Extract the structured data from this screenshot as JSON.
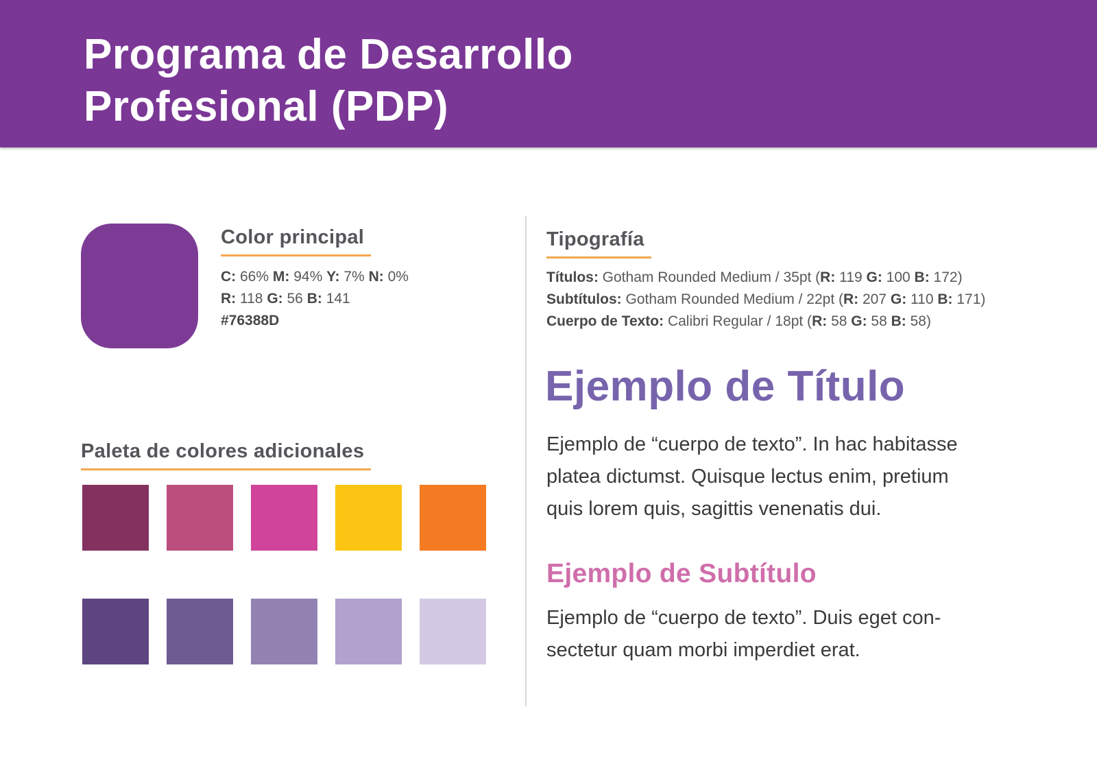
{
  "colors": {
    "header_bg": "#7A3795",
    "accent_underline": "#F2A84C",
    "heading_text": "#55565A",
    "spec_text": "#58585A",
    "divider": "#D6D6D6",
    "body_text": "#3A3A3A"
  },
  "header": {
    "title_lines": [
      "Programa de Desarrollo",
      "Profesional (PDP)"
    ]
  },
  "color_principal": {
    "heading": "Color principal",
    "swatch_color": "#7C3C95",
    "spec_lines": [
      [
        {
          "t": "C:",
          "b": 1
        },
        {
          "t": " 66% ",
          "b": 0
        },
        {
          "t": "M:",
          "b": 1
        },
        {
          "t": " 94% ",
          "b": 0
        },
        {
          "t": "Y:",
          "b": 1
        },
        {
          "t": " 7% ",
          "b": 0
        },
        {
          "t": "N:",
          "b": 1
        },
        {
          "t": " 0%",
          "b": 0
        }
      ],
      [
        {
          "t": "R:",
          "b": 1
        },
        {
          "t": " 118 ",
          "b": 0
        },
        {
          "t": "G:",
          "b": 1
        },
        {
          "t": " 56 ",
          "b": 0
        },
        {
          "t": "B:",
          "b": 1
        },
        {
          "t": " 141",
          "b": 0
        }
      ],
      [
        {
          "t": "#76388D",
          "b": 1
        }
      ]
    ]
  },
  "tipografia": {
    "heading": "Tipografía",
    "spec_lines": [
      [
        {
          "t": "Títulos:",
          "b": 1
        },
        {
          "t": " Gotham Rounded Medium / 35pt (",
          "b": 0
        },
        {
          "t": "R:",
          "b": 1
        },
        {
          "t": " 119 ",
          "b": 0
        },
        {
          "t": "G:",
          "b": 1
        },
        {
          "t": " 100 ",
          "b": 0
        },
        {
          "t": "B:",
          "b": 1
        },
        {
          "t": " 172)",
          "b": 0
        }
      ],
      [
        {
          "t": "Subtítulos:",
          "b": 1
        },
        {
          "t": " Gotham Rounded Medium / 22pt (",
          "b": 0
        },
        {
          "t": "R:",
          "b": 1
        },
        {
          "t": " 207 ",
          "b": 0
        },
        {
          "t": "G:",
          "b": 1
        },
        {
          "t": " 110 ",
          "b": 0
        },
        {
          "t": "B:",
          "b": 1
        },
        {
          "t": " 171)",
          "b": 0
        }
      ],
      [
        {
          "t": "Cuerpo de Texto:",
          "b": 1
        },
        {
          "t": " Calibri Regular / 18pt (",
          "b": 0
        },
        {
          "t": "R:",
          "b": 1
        },
        {
          "t": " 58 ",
          "b": 0
        },
        {
          "t": "G:",
          "b": 1
        },
        {
          "t": " 58 ",
          "b": 0
        },
        {
          "t": "B:",
          "b": 1
        },
        {
          "t": " 58)",
          "b": 0
        }
      ]
    ]
  },
  "palette": {
    "heading": "Paleta de colores adicionales",
    "row1": [
      "#83325F",
      "#BC4E7E",
      "#D0459A",
      "#FDC513",
      "#F47B21"
    ],
    "row2": [
      "#5D4580",
      "#6E5B92",
      "#9283B2",
      "#B0A2CC",
      "#D3C9E4"
    ]
  },
  "examples": {
    "title_text": "Ejemplo de Título",
    "title_color": "#7764AC",
    "body1_lines": [
      "Ejemplo de “cuerpo de texto”. In hac habitasse",
      "platea dictumst. Quisque lectus enim, pretium",
      "quis lorem quis, sagittis venenatis dui."
    ],
    "subtitle_text": "Ejemplo de Subtítulo",
    "subtitle_color": "#CF6EAB",
    "body2_lines": [
      "Ejemplo de “cuerpo de texto”. Duis eget con-",
      "sectetur quam morbi imperdiet erat."
    ]
  }
}
